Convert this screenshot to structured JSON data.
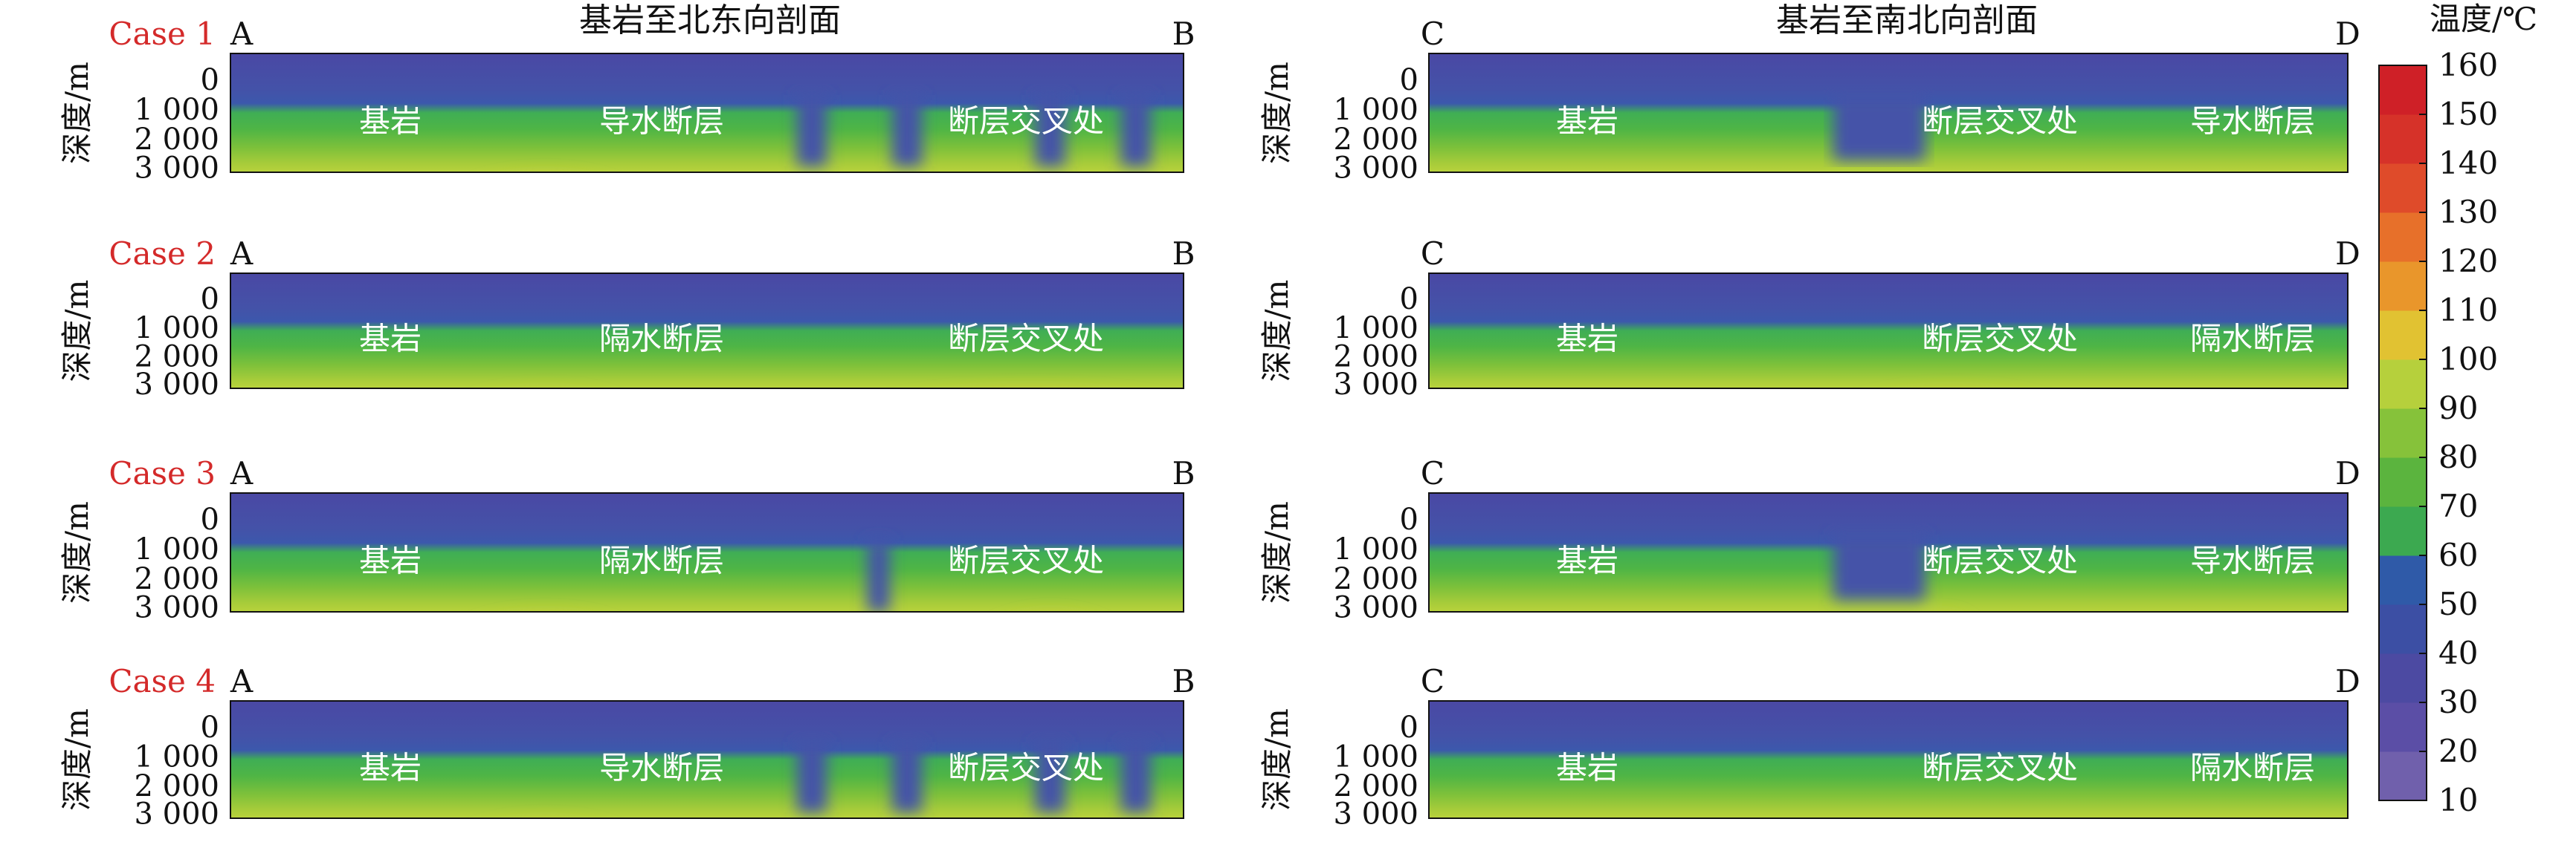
{
  "chart_data": {
    "type": "heatmap",
    "figure_titles": {
      "left": "基岩至北东向剖面",
      "right": "基岩至南北向剖面"
    },
    "ylabel": "深度/m",
    "yticks": [
      "0",
      "1 000",
      "2 000",
      "3 000"
    ],
    "colorbar": {
      "title": "温度/℃",
      "ticks": [
        10,
        20,
        30,
        40,
        50,
        60,
        70,
        80,
        90,
        100,
        110,
        120,
        130,
        140,
        150,
        160
      ],
      "colors": [
        "#7060ac",
        "#5b4ea6",
        "#4c4aa2",
        "#3c4fa4",
        "#2f5aa8",
        "#3ca950",
        "#5bb43e",
        "#86c23a",
        "#b6d03c",
        "#e1c232",
        "#e9962b",
        "#e7702a",
        "#df4b2a",
        "#d63229",
        "#cf2027"
      ]
    },
    "panels": [
      {
        "case": "Case 1",
        "section": "left",
        "start": "A",
        "end": "B",
        "labels": [
          "基岩",
          "导水断层",
          "断层交叉处"
        ]
      },
      {
        "case": "",
        "section": "right",
        "start": "C",
        "end": "D",
        "labels": [
          "基岩",
          "断层交叉处",
          "导水断层"
        ]
      },
      {
        "case": "Case 2",
        "section": "left",
        "start": "A",
        "end": "B",
        "labels": [
          "基岩",
          "隔水断层",
          "断层交叉处"
        ]
      },
      {
        "case": "",
        "section": "right",
        "start": "C",
        "end": "D",
        "labels": [
          "基岩",
          "断层交叉处",
          "隔水断层"
        ]
      },
      {
        "case": "Case 3",
        "section": "left",
        "start": "A",
        "end": "B",
        "labels": [
          "基岩",
          "隔水断层",
          "断层交叉处"
        ]
      },
      {
        "case": "",
        "section": "right",
        "start": "C",
        "end": "D",
        "labels": [
          "基岩",
          "断层交叉处",
          "导水断层"
        ]
      },
      {
        "case": "Case 4",
        "section": "left",
        "start": "A",
        "end": "B",
        "labels": [
          "基岩",
          "导水断层",
          "断层交叉处"
        ]
      },
      {
        "case": "",
        "section": "right",
        "start": "C",
        "end": "D",
        "labels": [
          "基岩",
          "断层交叉处",
          "隔水断层"
        ]
      }
    ]
  }
}
